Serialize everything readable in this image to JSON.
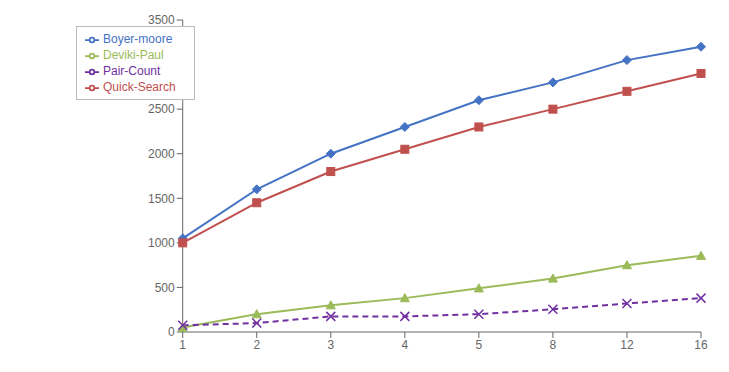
{
  "chart_data": {
    "type": "line",
    "categories": [
      "1",
      "2",
      "3",
      "4",
      "5",
      "8",
      "12",
      "16"
    ],
    "series": [
      {
        "name": "Boyer-moore",
        "color": "#4472C4",
        "values": [
          1050,
          1600,
          2000,
          2300,
          2600,
          2800,
          3050,
          3200
        ],
        "marker": "diamond",
        "line_style": "solid"
      },
      {
        "name": "Quick-Search",
        "color": "#C0504D",
        "values": [
          1000,
          1450,
          1800,
          2050,
          2300,
          2500,
          2700,
          2900
        ],
        "marker": "square",
        "line_style": "solid"
      },
      {
        "name": "Deviki-Paul",
        "color": "#9BBB59",
        "values": [
          50,
          200,
          300,
          380,
          490,
          600,
          750,
          855
        ],
        "marker": "triangle",
        "line_style": "solid"
      },
      {
        "name": "Pair-Count",
        "color": "#7030A0",
        "values": [
          75,
          100,
          175,
          175,
          200,
          255,
          320,
          380
        ],
        "marker": "x",
        "line_style": "dashed"
      }
    ],
    "ylim": [
      0,
      3500
    ],
    "yticks": [
      0,
      500,
      1000,
      1500,
      2000,
      2500,
      3000,
      3500
    ],
    "grid": false,
    "legend": "upper left"
  }
}
